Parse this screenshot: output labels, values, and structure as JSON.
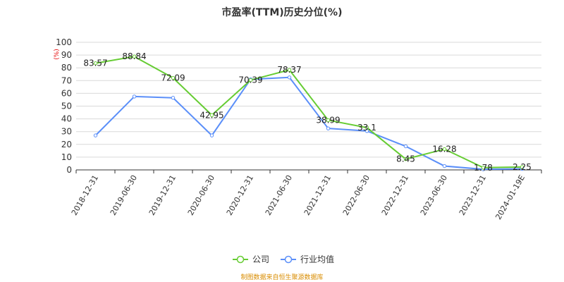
{
  "chart_data": {
    "type": "line",
    "title": "市盈率(TTM)历史分位(%)",
    "ylabel": "(%)",
    "xlabel": "",
    "ylim": [
      0,
      100
    ],
    "yticks": [
      0,
      10,
      20,
      30,
      40,
      50,
      60,
      70,
      80,
      90,
      100
    ],
    "grid": true,
    "legend_position": "bottom",
    "categories": [
      "2018-12-31",
      "2019-06-30",
      "2019-12-31",
      "2020-06-30",
      "2020-12-31",
      "2021-06-30",
      "2021-12-31",
      "2022-06-30",
      "2022-12-31",
      "2023-06-30",
      "2023-12-31",
      "2024-01-19E"
    ],
    "series": [
      {
        "name": "公司",
        "color": "#66cc33",
        "values": [
          83.57,
          88.84,
          72.09,
          42.95,
          70.39,
          78.37,
          38.99,
          33.1,
          8.45,
          16.28,
          1.78,
          2.25
        ],
        "labels": [
          "83.57",
          "88.84",
          "72.09",
          "42.95",
          "70.39",
          "78.37",
          "38.99",
          "33.1",
          "8.45",
          "16.28",
          "1.78",
          "2.25"
        ]
      },
      {
        "name": "行业均值",
        "color": "#5b8ff9",
        "values": [
          27,
          57.5,
          56.5,
          27,
          71,
          72.5,
          32.5,
          30.5,
          18.5,
          3,
          0.5,
          0.8
        ]
      }
    ]
  },
  "source_note": "制图数据来自恒生聚源数据库"
}
